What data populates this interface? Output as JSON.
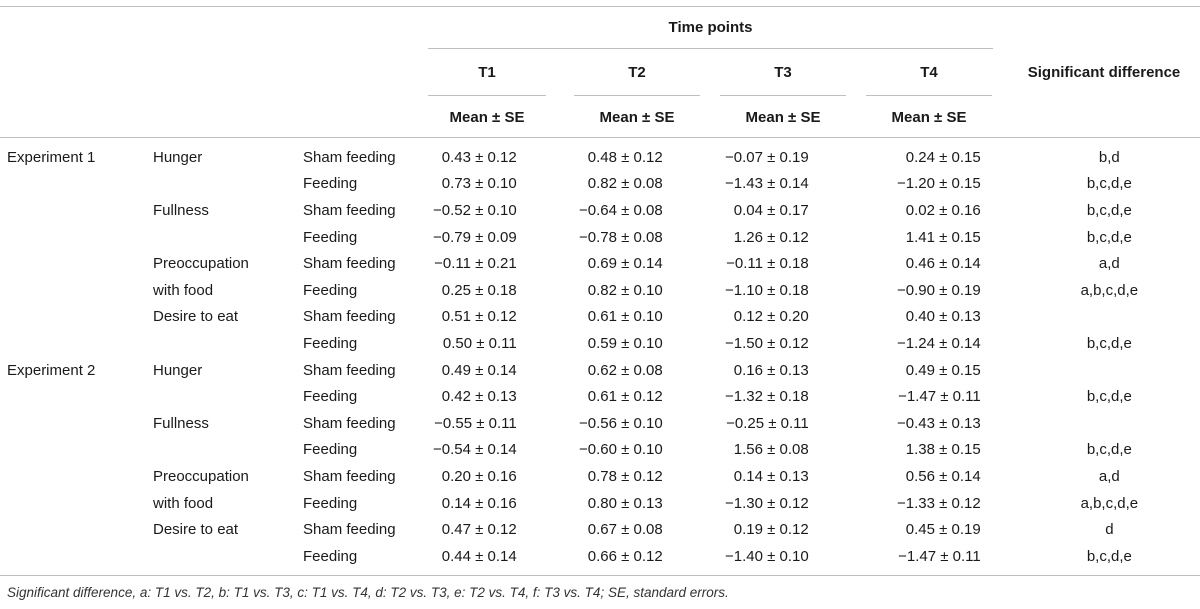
{
  "header": {
    "time_points": "Time points",
    "columns": [
      "T1",
      "T2",
      "T3",
      "T4"
    ],
    "stat": "Mean ± SE",
    "significant": "Significant difference"
  },
  "rows": [
    {
      "exp": "Experiment 1",
      "measure": "Hunger",
      "cond": "Sham feeding",
      "t1": "0.43 ± 0.12",
      "t2": "0.48 ± 0.12",
      "t3": "−0.07 ± 0.19",
      "t4": "0.24 ± 0.15",
      "sig": "b,d"
    },
    {
      "exp": "",
      "measure": "",
      "cond": "Feeding",
      "t1": "0.73 ± 0.10",
      "t2": "0.82 ± 0.08",
      "t3": "−1.43 ± 0.14",
      "t4": "−1.20 ± 0.15",
      "sig": "b,c,d,e"
    },
    {
      "exp": "",
      "measure": "Fullness",
      "cond": "Sham feeding",
      "t1": "−0.52 ± 0.10",
      "t2": "−0.64 ± 0.08",
      "t3": "0.04 ± 0.17",
      "t4": "0.02 ± 0.16",
      "sig": "b,c,d,e"
    },
    {
      "exp": "",
      "measure": "",
      "cond": "Feeding",
      "t1": "−0.79 ± 0.09",
      "t2": "−0.78 ± 0.08",
      "t3": "1.26 ± 0.12",
      "t4": "1.41 ± 0.15",
      "sig": "b,c,d,e"
    },
    {
      "exp": "",
      "measure": "Preoccupation",
      "cond": "Sham feeding",
      "t1": "−0.11 ± 0.21",
      "t2": "0.69 ± 0.14",
      "t3": "−0.11 ± 0.18",
      "t4": "0.46 ± 0.14",
      "sig": "a,d"
    },
    {
      "exp": "",
      "measure": "with food",
      "cond": "Feeding",
      "t1": "0.25 ± 0.18",
      "t2": "0.82 ± 0.10",
      "t3": "−1.10 ± 0.18",
      "t4": "−0.90 ± 0.19",
      "sig": "a,b,c,d,e"
    },
    {
      "exp": "",
      "measure": "Desire to eat",
      "cond": "Sham feeding",
      "t1": "0.51 ± 0.12",
      "t2": "0.61 ± 0.10",
      "t3": "0.12 ± 0.20",
      "t4": "0.40 ± 0.13",
      "sig": ""
    },
    {
      "exp": "",
      "measure": "",
      "cond": "Feeding",
      "t1": "0.50 ± 0.11",
      "t2": "0.59 ± 0.10",
      "t3": "−1.50 ± 0.12",
      "t4": "−1.24 ± 0.14",
      "sig": "b,c,d,e"
    },
    {
      "exp": "Experiment 2",
      "measure": "Hunger",
      "cond": "Sham feeding",
      "t1": "0.49 ± 0.14",
      "t2": "0.62 ± 0.08",
      "t3": "0.16 ± 0.13",
      "t4": "0.49 ± 0.15",
      "sig": ""
    },
    {
      "exp": "",
      "measure": "",
      "cond": "Feeding",
      "t1": "0.42 ± 0.13",
      "t2": "0.61 ± 0.12",
      "t3": "−1.32 ± 0.18",
      "t4": "−1.47 ± 0.11",
      "sig": "b,c,d,e"
    },
    {
      "exp": "",
      "measure": "Fullness",
      "cond": "Sham feeding",
      "t1": "−0.55 ± 0.11",
      "t2": "−0.56 ± 0.10",
      "t3": "−0.25 ± 0.11",
      "t4": "−0.43 ± 0.13",
      "sig": ""
    },
    {
      "exp": "",
      "measure": "",
      "cond": "Feeding",
      "t1": "−0.54 ± 0.14",
      "t2": "−0.60 ± 0.10",
      "t3": "1.56 ± 0.08",
      "t4": "1.38 ± 0.15",
      "sig": "b,c,d,e"
    },
    {
      "exp": "",
      "measure": "Preoccupation",
      "cond": "Sham feeding",
      "t1": "0.20 ± 0.16",
      "t2": "0.78 ± 0.12",
      "t3": "0.14 ± 0.13",
      "t4": "0.56 ± 0.14",
      "sig": "a,d"
    },
    {
      "exp": "",
      "measure": "with food",
      "cond": "Feeding",
      "t1": "0.14 ± 0.16",
      "t2": "0.80 ± 0.13",
      "t3": "−1.30 ± 0.12",
      "t4": "−1.33 ± 0.12",
      "sig": "a,b,c,d,e"
    },
    {
      "exp": "",
      "measure": "Desire to eat",
      "cond": "Sham feeding",
      "t1": "0.47 ± 0.12",
      "t2": "0.67 ± 0.08",
      "t3": "0.19 ± 0.12",
      "t4": "0.45 ± 0.19",
      "sig": "d"
    },
    {
      "exp": "",
      "measure": "",
      "cond": "Feeding",
      "t1": "0.44 ± 0.14",
      "t2": "0.66 ± 0.12",
      "t3": "−1.40 ± 0.10",
      "t4": "−1.47 ± 0.11",
      "sig": "b,c,d,e"
    }
  ],
  "footnote": "Significant difference, a: T1 vs. T2, b: T1 vs. T3, c: T1 vs. T4, d: T2 vs. T3, e: T2 vs. T4, f: T3 vs. T4; SE, standard errors."
}
